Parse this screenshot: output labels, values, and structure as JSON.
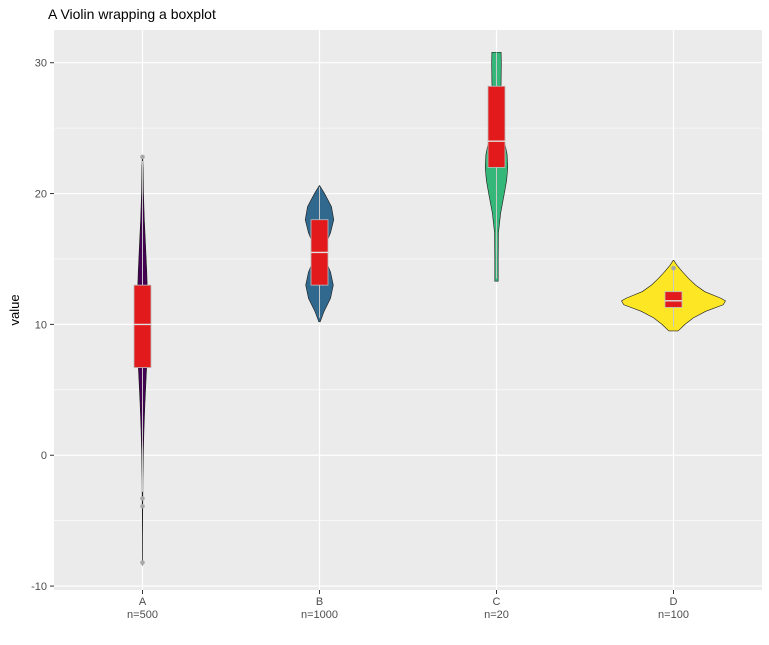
{
  "chart_data": {
    "type": "violin",
    "title": "A Violin wrapping a boxplot",
    "xlabel": "",
    "ylabel": "value",
    "ylim": [
      -10.3,
      32.5
    ],
    "yticks": [
      -10,
      0,
      10,
      20,
      30
    ],
    "grid": true,
    "legend": "none",
    "background": "#ebebeb",
    "box_color": "#e31a1c",
    "categories": [
      {
        "name": "A",
        "sublabel": "n=500",
        "fill": "#440154",
        "box": {
          "q1": 6.7,
          "median": 10.0,
          "q3": 13.0
        },
        "whisker": [
          -2.8,
          22.5
        ],
        "outliers": [
          22.8,
          -3.3,
          -3.9,
          -8.2
        ],
        "density": [
          [
            -8.4,
            0.1
          ],
          [
            -6,
            0.2
          ],
          [
            -4,
            0.5
          ],
          [
            -2,
            0.9
          ],
          [
            0,
            1.7
          ],
          [
            2,
            3.2
          ],
          [
            4,
            5.3
          ],
          [
            6,
            8.0
          ],
          [
            8,
            10.8
          ],
          [
            10,
            12.0
          ],
          [
            12,
            11.0
          ],
          [
            14,
            9.3
          ],
          [
            16,
            6.7
          ],
          [
            18,
            4.0
          ],
          [
            20,
            2.1
          ],
          [
            22,
            1.3
          ],
          [
            22.9,
            0.3
          ]
        ]
      },
      {
        "name": "B",
        "sublabel": "n=1000",
        "fill": "#31688e",
        "box": {
          "q1": 13.0,
          "median": 15.5,
          "q3": 18.0
        },
        "whisker": [
          10.5,
          20.5
        ],
        "outliers": [],
        "density": [
          [
            10.2,
            1.5
          ],
          [
            11,
            10
          ],
          [
            12,
            24
          ],
          [
            13,
            30
          ],
          [
            14,
            24
          ],
          [
            15,
            12
          ],
          [
            15.5,
            9
          ],
          [
            16,
            12
          ],
          [
            17,
            24
          ],
          [
            18,
            31
          ],
          [
            19,
            26
          ],
          [
            20,
            11
          ],
          [
            20.6,
            0.5
          ]
        ]
      },
      {
        "name": "C",
        "sublabel": "n=20",
        "fill": "#35b779",
        "box": {
          "q1": 22.0,
          "median": 24.0,
          "q3": 28.2
        },
        "whisker": [
          13.5,
          30.8
        ],
        "outliers": [],
        "density": [
          [
            13.3,
            3.7
          ],
          [
            15,
            3.7
          ],
          [
            17,
            4.2
          ],
          [
            18.5,
            9
          ],
          [
            20,
            17
          ],
          [
            21,
            22
          ],
          [
            22,
            24.5
          ],
          [
            23,
            23
          ],
          [
            24,
            17
          ],
          [
            25,
            10
          ],
          [
            26.5,
            8
          ],
          [
            27.5,
            9
          ],
          [
            28.5,
            10
          ],
          [
            30,
            10.5
          ],
          [
            30.8,
            10
          ]
        ]
      },
      {
        "name": "D",
        "sublabel": "n=100",
        "fill": "#fde725",
        "box": {
          "q1": 11.3,
          "median": 11.8,
          "q3": 12.5
        },
        "whisker": [
          9.8,
          14.2
        ],
        "outliers": [
          14.3
        ],
        "density": [
          [
            9.5,
            10
          ],
          [
            10,
            25
          ],
          [
            10.5,
            43
          ],
          [
            11,
            70
          ],
          [
            11.5,
            108
          ],
          [
            11.8,
            113
          ],
          [
            12,
            103
          ],
          [
            12.5,
            68
          ],
          [
            13,
            48
          ],
          [
            13.5,
            33
          ],
          [
            14,
            20
          ],
          [
            14.5,
            8
          ],
          [
            14.9,
            0.5
          ]
        ]
      }
    ]
  }
}
